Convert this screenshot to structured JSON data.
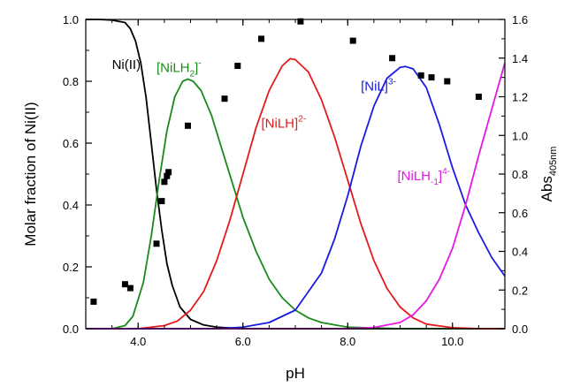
{
  "chart_data": {
    "type": "line",
    "xlabel": "pH",
    "ylabel": "Molar fraction of Ni(II)",
    "y2label": {
      "main": "Abs",
      "sub": "405nm"
    },
    "xlim": [
      3.0,
      11.0
    ],
    "ylim": [
      0.0,
      1.0
    ],
    "y2lim": [
      0.0,
      1.6
    ],
    "x_ticks": [
      {
        "value": 4.0,
        "label": "4.0"
      },
      {
        "value": 6.0,
        "label": "6.0"
      },
      {
        "value": 8.0,
        "label": "8.0"
      },
      {
        "value": 10.0,
        "label": "10.0"
      }
    ],
    "y_ticks": [
      {
        "value": 0.0,
        "label": "0.0"
      },
      {
        "value": 0.2,
        "label": "0.2"
      },
      {
        "value": 0.4,
        "label": "0.4"
      },
      {
        "value": 0.6,
        "label": "0.6"
      },
      {
        "value": 0.8,
        "label": "0.8"
      },
      {
        "value": 1.0,
        "label": "1.0"
      }
    ],
    "y2_ticks": [
      {
        "value": 0.0,
        "label": "0.0"
      },
      {
        "value": 0.2,
        "label": "0.2"
      },
      {
        "value": 0.4,
        "label": "0.4"
      },
      {
        "value": 0.6,
        "label": "0.6"
      },
      {
        "value": 0.8,
        "label": "0.8"
      },
      {
        "value": 1.0,
        "label": "1.0"
      },
      {
        "value": 1.2,
        "label": "1.2"
      },
      {
        "value": 1.4,
        "label": "1.4"
      },
      {
        "value": 1.6,
        "label": "1.6"
      }
    ],
    "grid": false,
    "series": [
      {
        "color": "#000000",
        "label": {
          "parts": [
            {
              "t": "Ni(II)"
            }
          ],
          "at": [
            3.5,
            0.84
          ]
        },
        "x": [
          3.0,
          3.25,
          3.5,
          3.75,
          3.85,
          3.95,
          4.05,
          4.15,
          4.25,
          4.35,
          4.45,
          4.55,
          4.65,
          4.8,
          5.0,
          5.25,
          5.5,
          6.0,
          11.0
        ],
        "y": [
          1.0,
          1.0,
          0.998,
          0.99,
          0.97,
          0.93,
          0.86,
          0.75,
          0.6,
          0.45,
          0.32,
          0.21,
          0.14,
          0.07,
          0.03,
          0.012,
          0.005,
          0.0,
          0.0
        ]
      },
      {
        "color": "#1a8a1a",
        "label": {
          "parts": [
            {
              "t": "[NiLH"
            },
            {
              "t": "2",
              "sub": true
            },
            {
              "t": "]"
            },
            {
              "t": "-",
              "sup": true
            }
          ],
          "at": [
            4.35,
            0.83
          ]
        },
        "x": [
          3.0,
          3.5,
          3.75,
          3.9,
          4.1,
          4.25,
          4.4,
          4.55,
          4.7,
          4.85,
          4.95,
          5.05,
          5.2,
          5.4,
          5.6,
          5.8,
          6.0,
          6.25,
          6.5,
          6.75,
          7.0,
          7.25,
          7.5,
          8.0,
          9.0,
          11.0
        ],
        "y": [
          0.0,
          0.0,
          0.01,
          0.04,
          0.15,
          0.3,
          0.48,
          0.64,
          0.75,
          0.8,
          0.807,
          0.8,
          0.77,
          0.69,
          0.58,
          0.47,
          0.36,
          0.25,
          0.16,
          0.1,
          0.06,
          0.035,
          0.02,
          0.005,
          0.0,
          0.0
        ]
      },
      {
        "color": "#e31a1a",
        "label": {
          "parts": [
            {
              "t": "[NiLH]"
            },
            {
              "t": "2-",
              "sup": true
            }
          ],
          "at": [
            6.35,
            0.65
          ]
        },
        "x": [
          3.0,
          4.0,
          4.5,
          4.75,
          5.0,
          5.25,
          5.5,
          5.75,
          6.0,
          6.25,
          6.5,
          6.75,
          6.9,
          7.0,
          7.25,
          7.5,
          7.75,
          8.0,
          8.25,
          8.5,
          8.75,
          9.0,
          9.25,
          9.5,
          10.0,
          10.5,
          11.0
        ],
        "y": [
          0.0,
          0.0,
          0.01,
          0.025,
          0.06,
          0.12,
          0.22,
          0.35,
          0.5,
          0.65,
          0.77,
          0.85,
          0.873,
          0.87,
          0.83,
          0.74,
          0.62,
          0.48,
          0.34,
          0.22,
          0.13,
          0.07,
          0.035,
          0.015,
          0.003,
          0.0,
          0.0
        ]
      },
      {
        "color": "#1a1ae3",
        "label": {
          "parts": [
            {
              "t": "[NiL]"
            },
            {
              "t": "3-",
              "sup": true
            }
          ],
          "at": [
            8.25,
            0.77
          ]
        },
        "x": [
          3.0,
          5.5,
          6.0,
          6.5,
          7.0,
          7.5,
          7.75,
          8.0,
          8.25,
          8.5,
          8.75,
          9.0,
          9.1,
          9.25,
          9.5,
          9.75,
          10.0,
          10.25,
          10.5,
          10.75,
          11.0
        ],
        "y": [
          0.0,
          0.0,
          0.005,
          0.02,
          0.06,
          0.18,
          0.29,
          0.43,
          0.59,
          0.72,
          0.81,
          0.845,
          0.848,
          0.84,
          0.78,
          0.66,
          0.52,
          0.4,
          0.31,
          0.23,
          0.17
        ]
      },
      {
        "color": "#e31ae3",
        "label": {
          "parts": [
            {
              "t": "[NiLH"
            },
            {
              "t": "-1",
              "sub": true
            },
            {
              "t": "]"
            },
            {
              "t": "4-",
              "sup": true
            }
          ],
          "at": [
            8.95,
            0.48
          ]
        },
        "x": [
          3.0,
          8.0,
          8.5,
          9.0,
          9.25,
          9.5,
          9.75,
          10.0,
          10.25,
          10.5,
          10.75,
          11.0
        ],
        "y": [
          0.0,
          0.0,
          0.004,
          0.02,
          0.045,
          0.09,
          0.16,
          0.26,
          0.4,
          0.56,
          0.71,
          0.86
        ]
      }
    ],
    "points": {
      "axis": "y2",
      "marker": "square",
      "color": "#000000",
      "x": [
        3.15,
        3.75,
        3.85,
        4.35,
        4.45,
        4.5,
        4.55,
        4.58,
        4.95,
        5.65,
        5.9,
        6.35,
        7.1,
        8.1,
        8.85,
        9.4,
        9.6,
        9.9,
        10.5
      ],
      "y": [
        0.14,
        0.23,
        0.21,
        0.44,
        0.66,
        0.76,
        0.79,
        0.81,
        1.05,
        1.19,
        1.36,
        1.5,
        1.59,
        1.49,
        1.4,
        1.31,
        1.3,
        1.28,
        1.2
      ]
    }
  }
}
